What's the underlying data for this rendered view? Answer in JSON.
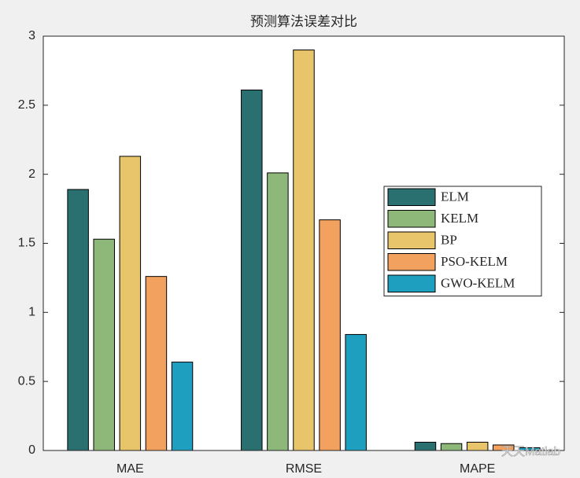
{
  "chart_data": {
    "type": "bar",
    "title": "预测算法误差对比",
    "categories": [
      "MAE",
      "RMSE",
      "MAPE"
    ],
    "series": [
      {
        "name": "ELM",
        "color": "#2a7070",
        "values": [
          1.89,
          2.61,
          0.06
        ]
      },
      {
        "name": "KELM",
        "color": "#8db87a",
        "values": [
          1.53,
          2.01,
          0.05
        ]
      },
      {
        "name": "BP",
        "color": "#e8c46a",
        "values": [
          2.13,
          2.9,
          0.06
        ]
      },
      {
        "name": "PSO-KELM",
        "color": "#f2a25e",
        "values": [
          1.26,
          1.67,
          0.04
        ]
      },
      {
        "name": "GWO-KELM",
        "color": "#1e9fbf",
        "values": [
          0.64,
          0.84,
          0.02
        ]
      }
    ],
    "ylim": [
      0,
      3
    ],
    "yticks": [
      0,
      0.5,
      1,
      1.5,
      2,
      2.5,
      3
    ],
    "legend": "right",
    "watermark": "天天Matlab"
  }
}
